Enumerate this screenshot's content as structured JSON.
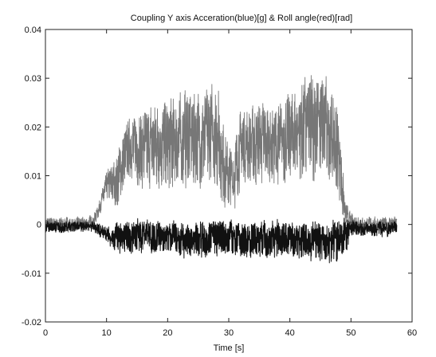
{
  "chart_data": {
    "type": "line",
    "title": "Coupling  Y axis Acceration(blue)[g] & Roll angle(red)[rad]",
    "xlabel": "Time [s]",
    "ylabel": "",
    "xlim": [
      0,
      60
    ],
    "ylim": [
      -0.02,
      0.04
    ],
    "xticks": [
      "0",
      "10",
      "20",
      "30",
      "40",
      "50",
      "60"
    ],
    "yticks": [
      "0.04",
      "0.03",
      "0.02",
      "0.01",
      "0",
      "-0.01",
      "-0.02"
    ],
    "grid": false,
    "legend": "none",
    "series": [
      {
        "color": "#777777",
        "x_range": [
          0,
          57.5
        ],
        "envelope": {
          "t": [
            0,
            7,
            8,
            9,
            10,
            11,
            12,
            13,
            14,
            16,
            18,
            20,
            22,
            24,
            26,
            28,
            29,
            30,
            31,
            32,
            34,
            36,
            38,
            40,
            42,
            44,
            46,
            47,
            48,
            49,
            50,
            52,
            54,
            56,
            57.5
          ],
          "low": [
            -0.002,
            -0.002,
            -0.001,
            0.002,
            0.004,
            0.003,
            0.001,
            0.006,
            0.008,
            0.004,
            0.005,
            0.003,
            0.004,
            0.004,
            0.004,
            0.004,
            0.001,
            0.0,
            0.001,
            0.006,
            0.005,
            0.006,
            0.004,
            0.006,
            0.004,
            0.005,
            0.006,
            0.003,
            0.002,
            -0.002,
            -0.002,
            -0.002,
            -0.002,
            -0.002,
            -0.001
          ],
          "high": [
            0.002,
            0.002,
            0.003,
            0.006,
            0.012,
            0.014,
            0.018,
            0.022,
            0.024,
            0.026,
            0.028,
            0.029,
            0.03,
            0.032,
            0.03,
            0.034,
            0.025,
            0.018,
            0.02,
            0.026,
            0.027,
            0.028,
            0.028,
            0.03,
            0.034,
            0.036,
            0.034,
            0.03,
            0.028,
            0.006,
            0.003,
            0.002,
            0.002,
            0.002,
            0.002
          ]
        }
      },
      {
        "color": "#111111",
        "x_range": [
          0,
          57.5
        ],
        "envelope": {
          "t": [
            0,
            7,
            8,
            9,
            10,
            11,
            12,
            14,
            16,
            18,
            20,
            22,
            24,
            26,
            28,
            30,
            32,
            34,
            36,
            38,
            40,
            42,
            44,
            46,
            48,
            49,
            50,
            52,
            54,
            56,
            57.5
          ],
          "low": [
            -0.002,
            -0.002,
            -0.002,
            -0.003,
            -0.004,
            -0.006,
            -0.007,
            -0.007,
            -0.007,
            -0.007,
            -0.007,
            -0.008,
            -0.008,
            -0.008,
            -0.008,
            -0.007,
            -0.008,
            -0.008,
            -0.008,
            -0.008,
            -0.008,
            -0.009,
            -0.009,
            -0.009,
            -0.011,
            -0.01,
            -0.003,
            -0.003,
            -0.003,
            -0.003,
            -0.002
          ],
          "high": [
            0.001,
            0.001,
            0.001,
            0.001,
            0.0,
            0.0,
            0.002,
            0.002,
            0.002,
            0.002,
            0.002,
            0.002,
            0.002,
            0.002,
            0.002,
            0.002,
            0.002,
            0.002,
            0.002,
            0.002,
            0.002,
            0.002,
            0.002,
            0.002,
            0.003,
            0.004,
            0.002,
            0.001,
            0.001,
            0.001,
            0.001
          ]
        }
      }
    ]
  }
}
